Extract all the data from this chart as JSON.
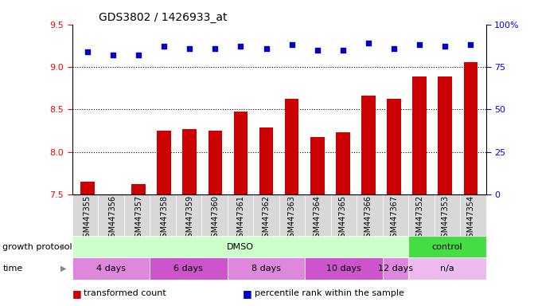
{
  "title": "GDS3802 / 1426933_at",
  "samples": [
    "GSM447355",
    "GSM447356",
    "GSM447357",
    "GSM447358",
    "GSM447359",
    "GSM447360",
    "GSM447361",
    "GSM447362",
    "GSM447363",
    "GSM447364",
    "GSM447365",
    "GSM447366",
    "GSM447367",
    "GSM447352",
    "GSM447353",
    "GSM447354"
  ],
  "transformed_count": [
    7.65,
    7.5,
    7.62,
    8.25,
    8.27,
    8.25,
    8.47,
    8.29,
    8.62,
    8.17,
    8.23,
    8.66,
    8.62,
    8.89,
    8.89,
    9.06
  ],
  "percentile_rank": [
    84,
    82,
    82,
    87,
    86,
    86,
    87,
    86,
    88,
    85,
    85,
    89,
    86,
    88,
    87,
    88
  ],
  "ylim_left": [
    7.5,
    9.5
  ],
  "ylim_right": [
    0,
    100
  ],
  "yticks_left": [
    7.5,
    8.0,
    8.5,
    9.0,
    9.5
  ],
  "yticks_right": [
    0,
    25,
    50,
    75,
    100
  ],
  "bar_color": "#cc0000",
  "dot_color": "#0000cc",
  "bar_bottom": 7.5,
  "growth_protocol_groups": [
    {
      "label": "DMSO",
      "start": 0,
      "end": 12,
      "color": "#ccffcc"
    },
    {
      "label": "control",
      "start": 13,
      "end": 15,
      "color": "#44dd44"
    }
  ],
  "time_groups": [
    {
      "label": "4 days",
      "start": 0,
      "end": 2,
      "color": "#dd88dd"
    },
    {
      "label": "6 days",
      "start": 3,
      "end": 5,
      "color": "#cc55cc"
    },
    {
      "label": "8 days",
      "start": 6,
      "end": 8,
      "color": "#dd88dd"
    },
    {
      "label": "10 days",
      "start": 9,
      "end": 11,
      "color": "#cc55cc"
    },
    {
      "label": "12 days",
      "start": 12,
      "end": 12,
      "color": "#dd88dd"
    },
    {
      "label": "n/a",
      "start": 13,
      "end": 15,
      "color": "#eebbee"
    }
  ],
  "grid_yticks": [
    8.0,
    8.5,
    9.0
  ],
  "legend_items": [
    {
      "label": "transformed count",
      "color": "#cc0000"
    },
    {
      "label": "percentile rank within the sample",
      "color": "#0000cc"
    }
  ]
}
